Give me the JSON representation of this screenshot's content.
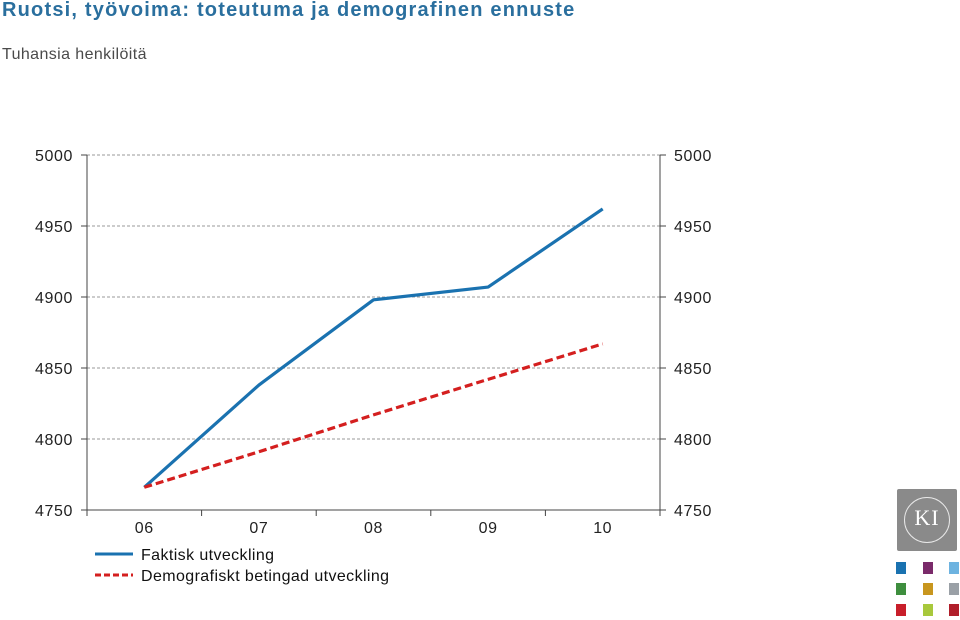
{
  "header": {
    "title": "Ruotsi, työvoima: toteutuma ja demografinen ennuste",
    "subtitle": "Tuhansia henkilöitä"
  },
  "chart_data": {
    "type": "line",
    "title": "Ruotsi, työvoima: toteutuma ja demografinen ennuste",
    "subtitle": "Tuhansia henkilöitä",
    "xlabel": "",
    "ylabel": "",
    "categories": [
      "06",
      "07",
      "08",
      "09",
      "10"
    ],
    "ylim": [
      4750,
      5000
    ],
    "yticks": [
      4750,
      4800,
      4850,
      4900,
      4950,
      5000
    ],
    "grid": true,
    "series": [
      {
        "name": "Faktisk utveckling",
        "color": "#1a72b0",
        "style": "solid",
        "values": [
          4766,
          4838,
          4898,
          4907,
          4962
        ]
      },
      {
        "name": "Demografiskt betingad utveckling",
        "color": "#d41f1f",
        "style": "dashed",
        "values": [
          4766,
          4791,
          4817,
          4842,
          4867
        ]
      }
    ],
    "legend_position": "bottom-left"
  },
  "logo": {
    "text": "KI",
    "swatch_colors": [
      "#1a72b0",
      "#7a2a6a",
      "#6db3e0",
      "#3e8e3e",
      "#c8961e",
      "#9aa0a6",
      "#c81e2a",
      "#a8c83c",
      "#b01e2a"
    ]
  }
}
